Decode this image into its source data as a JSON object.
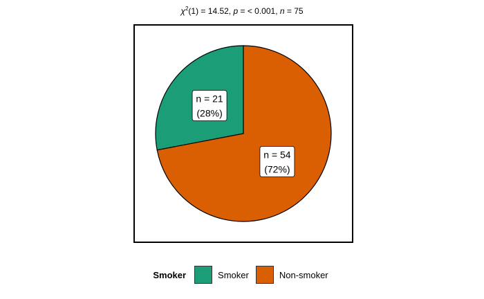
{
  "header": {
    "chi_symbol": "χ",
    "chi_sup": "2",
    "stat_text": "(1) = 14.52, ",
    "p_symbol": "p",
    "p_text": " = < 0.001, ",
    "n_symbol": "n",
    "n_text": " = 75"
  },
  "chart_data": {
    "type": "pie",
    "title": "",
    "legend_title": "Smoker",
    "legend_position": "bottom",
    "slices": [
      {
        "name": "Smoker",
        "value": 21,
        "percent_label": "(28%)",
        "count_label": "n = 21",
        "color": "#1b9e77"
      },
      {
        "name": "Non-smoker",
        "value": 54,
        "percent_label": "(72%)",
        "count_label": "n = 54",
        "color": "#d95f02"
      }
    ]
  },
  "legend": {
    "title": "Smoker",
    "items": [
      {
        "label": "Smoker",
        "color": "#1b9e77"
      },
      {
        "label": "Non-smoker",
        "color": "#d95f02"
      }
    ]
  }
}
